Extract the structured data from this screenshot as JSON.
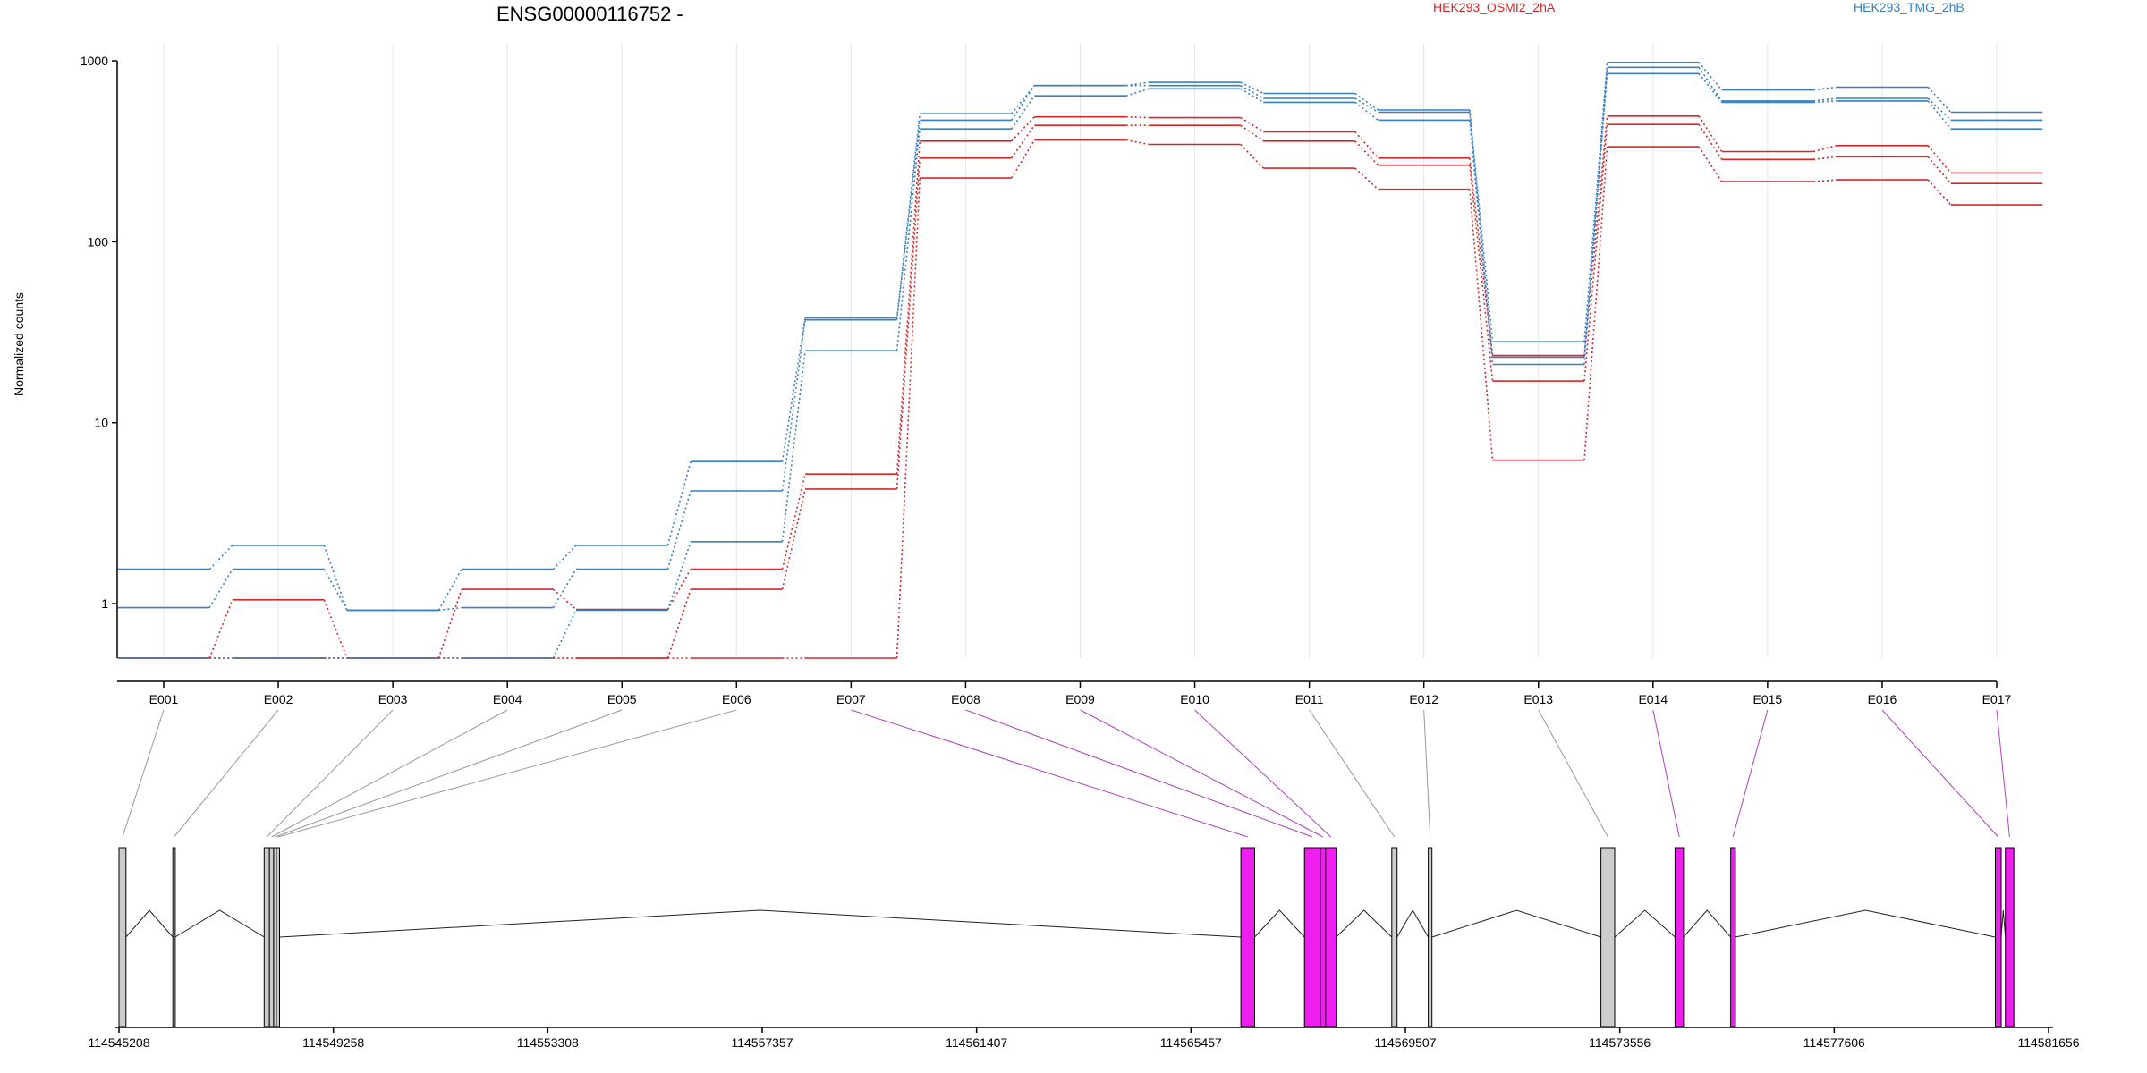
{
  "colors": {
    "red": "#d62728",
    "blue": "#3a7fc1",
    "magenta": "#ee1eee",
    "gray": "#cccccc",
    "conn_gray": "#999999",
    "conn_magenta": "#b040c0"
  },
  "chart_data": {
    "type": "line",
    "title": "ENSG00000116752 -",
    "ylabel": "Normalized counts",
    "xlabel": "",
    "yscale": "log",
    "ylim": [
      0.5,
      1000
    ],
    "yticks": [
      1,
      10,
      100,
      1000
    ],
    "ytick_labels": [
      "1",
      "10",
      "100",
      "1000"
    ],
    "grid": "vertical",
    "legend_placement": "top",
    "legend": [
      {
        "name": "HEK293_OSMI2_2hA",
        "color": "red"
      },
      {
        "name": "HEK293_TMG_2hB",
        "color": "blue"
      }
    ],
    "categories": [
      "E001",
      "E002",
      "E003",
      "E004",
      "E005",
      "E006",
      "E007",
      "E008",
      "E009",
      "E010",
      "E011",
      "E012",
      "E013",
      "E014",
      "E015",
      "E016",
      "E017"
    ],
    "series": [
      {
        "color": "red",
        "values": [
          0.5,
          1.05,
          0.5,
          1.2,
          0.93,
          1.55,
          5.2,
          360,
          490,
          485,
          405,
          290,
          23.5,
          495,
          315,
          340,
          240
        ]
      },
      {
        "color": "red",
        "values": [
          0.5,
          0.5,
          0.5,
          0.5,
          0.5,
          1.2,
          4.3,
          290,
          440,
          440,
          360,
          265,
          17,
          445,
          285,
          295,
          210
        ]
      },
      {
        "color": "red",
        "values": [
          0.5,
          0.5,
          0.5,
          0.5,
          0.5,
          0.5,
          0.5,
          225,
          365,
          345,
          255,
          195,
          6.2,
          335,
          215,
          220,
          160
        ]
      },
      {
        "color": "blue",
        "values": [
          1.55,
          2.1,
          0.92,
          1.55,
          2.1,
          6.1,
          38,
          510,
          730,
          760,
          660,
          535,
          28,
          980,
          690,
          715,
          520
        ]
      },
      {
        "color": "blue",
        "values": [
          0.95,
          1.55,
          0.92,
          0.95,
          1.55,
          4.2,
          37,
          470,
          730,
          730,
          620,
          520,
          23,
          920,
          600,
          620,
          470
        ]
      },
      {
        "color": "blue",
        "values": [
          0.5,
          0.5,
          0.5,
          0.5,
          0.92,
          2.2,
          25,
          420,
          640,
          700,
          590,
          470,
          21,
          850,
          590,
          600,
          420
        ]
      }
    ]
  },
  "gene_model": {
    "coordinate_ticks": [
      "114545208",
      "114549258",
      "114553308",
      "114557357",
      "114561407",
      "114565457",
      "114569507",
      "114573556",
      "114577606",
      "114581656"
    ],
    "tick_range": [
      114545208,
      114581656
    ],
    "exons": [
      {
        "id": "E001",
        "start": 114545208,
        "end": 114545340,
        "highlight": false
      },
      {
        "id": "E002",
        "start": 114546225,
        "end": 114546270,
        "highlight": false
      },
      {
        "id": "E003",
        "start": 114547950,
        "end": 114548050,
        "highlight": false
      },
      {
        "id": "E004",
        "start": 114548050,
        "end": 114548130,
        "highlight": false
      },
      {
        "id": "E005",
        "start": 114548130,
        "end": 114548180,
        "highlight": false
      },
      {
        "id": "E006",
        "start": 114548180,
        "end": 114548240,
        "highlight": false
      },
      {
        "id": "E007",
        "start": 114566400,
        "end": 114566660,
        "highlight": true
      },
      {
        "id": "E008",
        "start": 114567600,
        "end": 114567900,
        "highlight": true
      },
      {
        "id": "E009",
        "start": 114567900,
        "end": 114568000,
        "highlight": true
      },
      {
        "id": "E010",
        "start": 114568000,
        "end": 114568200,
        "highlight": true
      },
      {
        "id": "E011",
        "start": 114569250,
        "end": 114569350,
        "highlight": false
      },
      {
        "id": "E012",
        "start": 114569940,
        "end": 114570010,
        "highlight": false
      },
      {
        "id": "E013",
        "start": 114573200,
        "end": 114573460,
        "highlight": false
      },
      {
        "id": "E014",
        "start": 114574600,
        "end": 114574760,
        "highlight": true
      },
      {
        "id": "E015",
        "start": 114575650,
        "end": 114575740,
        "highlight": true
      },
      {
        "id": "E016",
        "start": 114580650,
        "end": 114580760,
        "highlight": true
      },
      {
        "id": "E017",
        "start": 114580840,
        "end": 114581000,
        "highlight": true
      }
    ]
  }
}
